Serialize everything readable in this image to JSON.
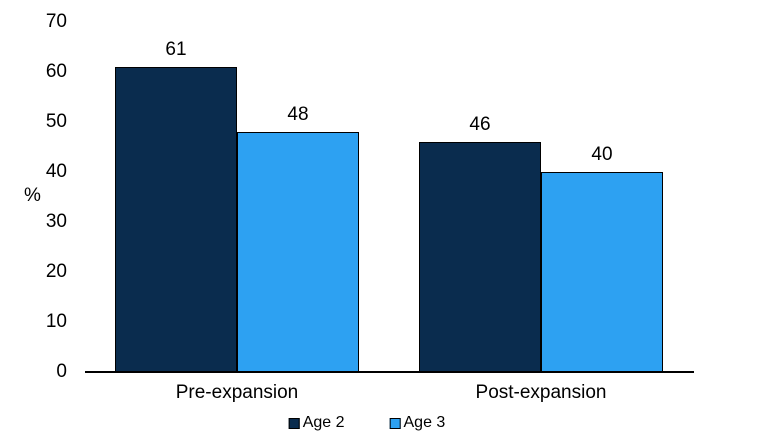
{
  "chart_data": {
    "type": "bar",
    "title": "",
    "xlabel": "",
    "ylabel": "%",
    "categories": [
      "Pre-expansion",
      "Post-expansion"
    ],
    "series": [
      {
        "name": "Age 2",
        "color": "#0A2C4E",
        "values": [
          61,
          46
        ]
      },
      {
        "name": "Age 3",
        "color": "#2DA1F2",
        "values": [
          48,
          40
        ]
      }
    ],
    "ylim": [
      0,
      70
    ],
    "yticks": [
      0,
      10,
      20,
      30,
      40,
      50,
      60,
      70
    ],
    "grid": false,
    "legend_position": "bottom",
    "bar_labels": [
      [
        "61",
        "46"
      ],
      [
        "48",
        "40"
      ]
    ],
    "axis_color": "#000000",
    "bar_border_color": "#000000"
  },
  "legend": {
    "items": [
      {
        "label": "Age 2",
        "color": "#0A2C4E"
      },
      {
        "label": "Age 3",
        "color": "#2DA1F2"
      }
    ]
  }
}
